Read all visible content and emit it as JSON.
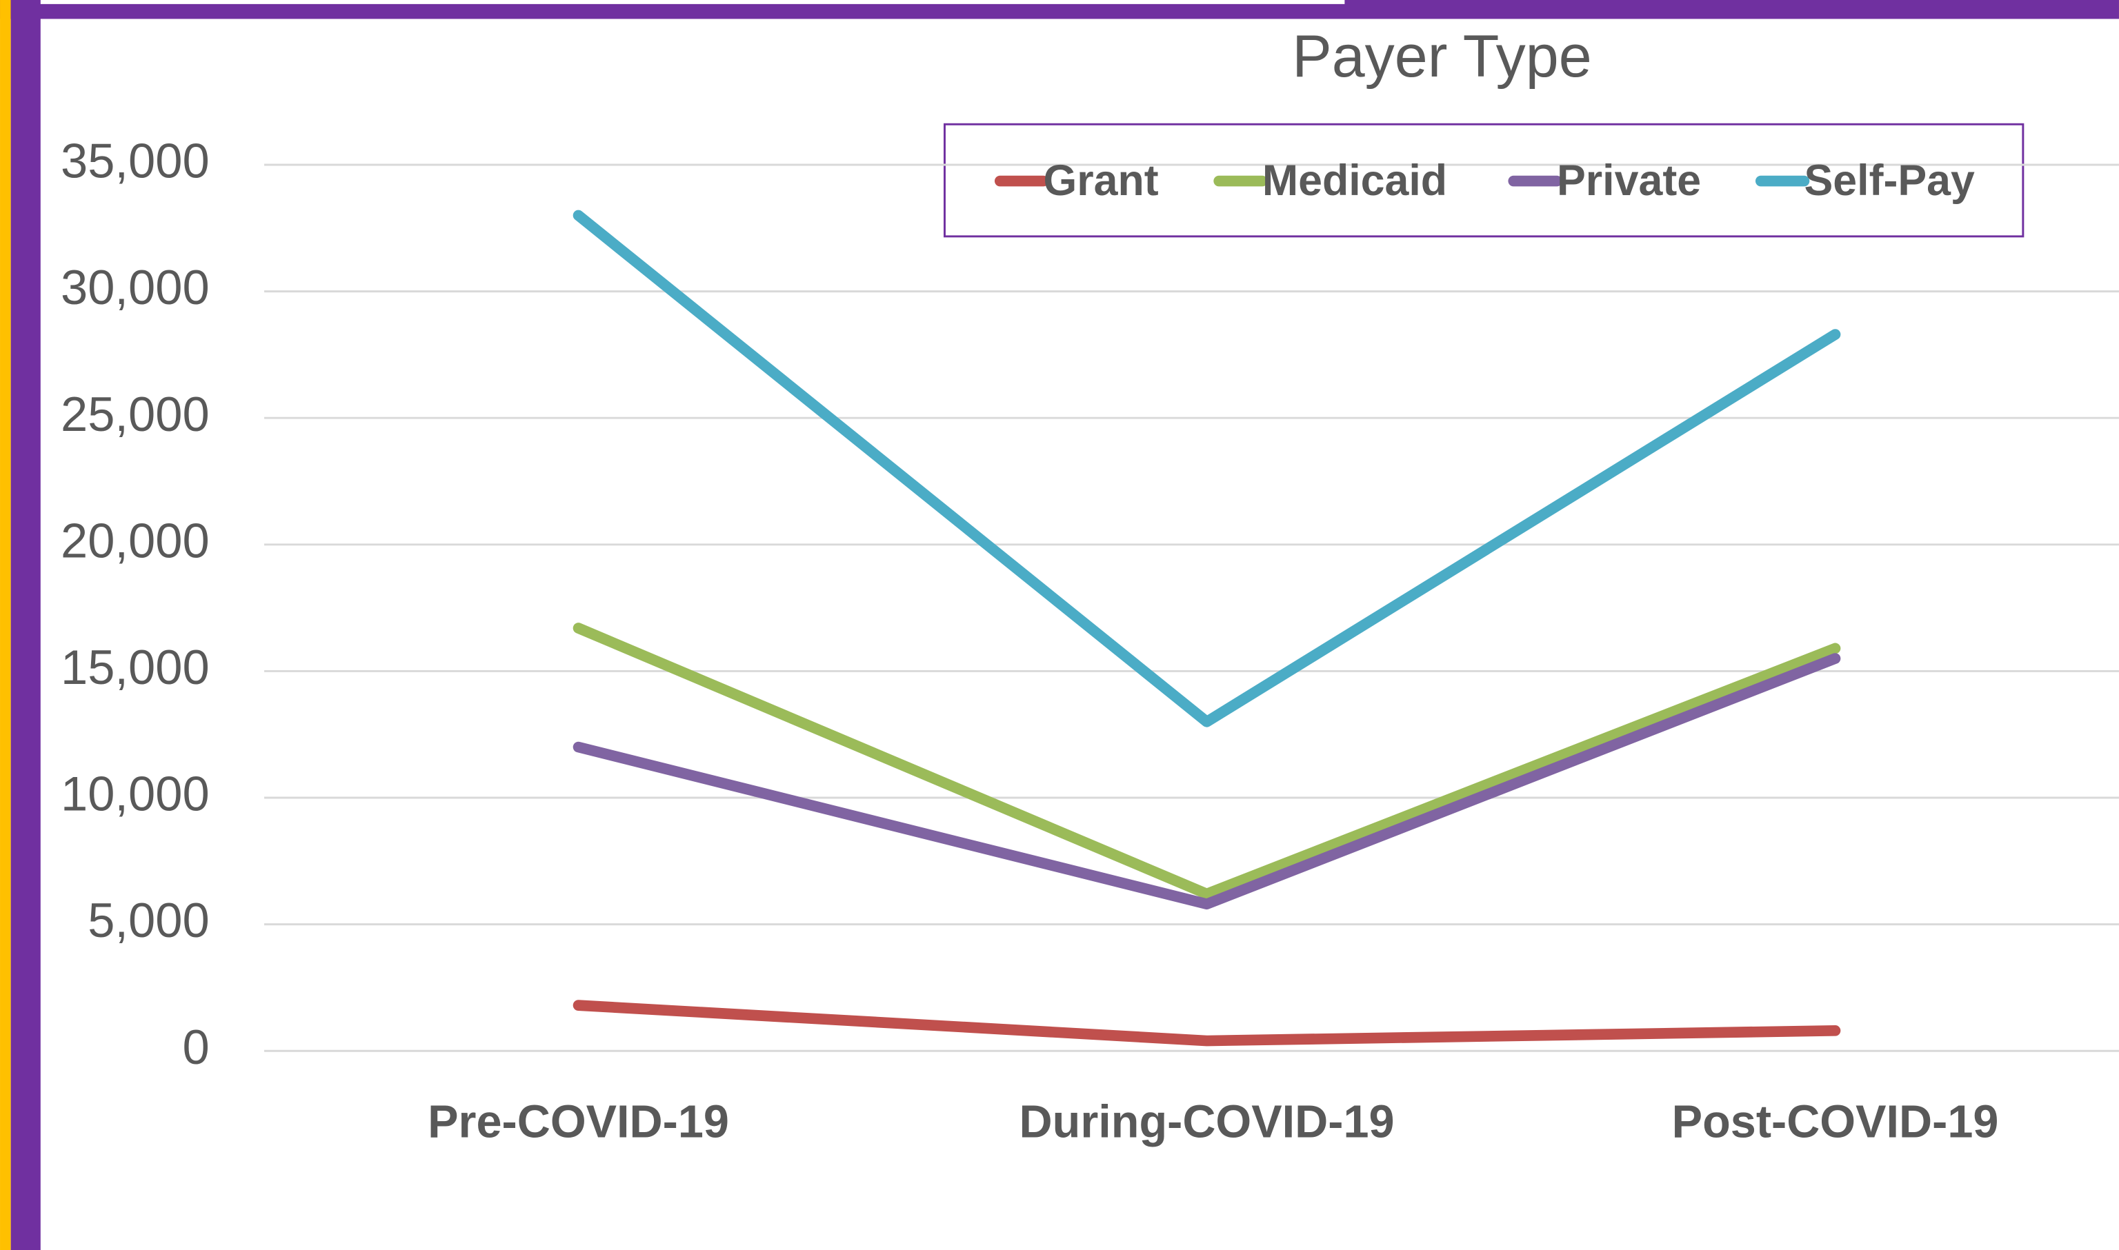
{
  "chart_data": {
    "type": "line",
    "title": "Payer Type",
    "categories": [
      "Pre-COVID-19",
      "During-COVID-19",
      "Post-COVID-19"
    ],
    "series": [
      {
        "name": "Grant",
        "color": "#c0504d",
        "values": [
          1800,
          400,
          800
        ]
      },
      {
        "name": "Medicaid",
        "color": "#9bbb59",
        "values": [
          16700,
          6200,
          15900
        ]
      },
      {
        "name": "Private",
        "color": "#8064a2",
        "values": [
          12000,
          5800,
          15500
        ]
      },
      {
        "name": "Self-Pay",
        "color": "#4bacc6",
        "values": [
          33000,
          13000,
          28300
        ]
      }
    ],
    "ylim": [
      0,
      35000
    ],
    "yticks": [
      0,
      {
        "value": 5000,
        "label": "5,000"
      },
      {
        "value": 10000,
        "label": "10,000"
      },
      {
        "value": 15000,
        "label": "15,000"
      },
      {
        "value": 20000,
        "label": "20,000"
      },
      {
        "value": 25000,
        "label": "25,000"
      },
      {
        "value": 30000,
        "label": "30,000"
      },
      {
        "value": 35000,
        "label": "35,000"
      }
    ],
    "grid": true
  }
}
